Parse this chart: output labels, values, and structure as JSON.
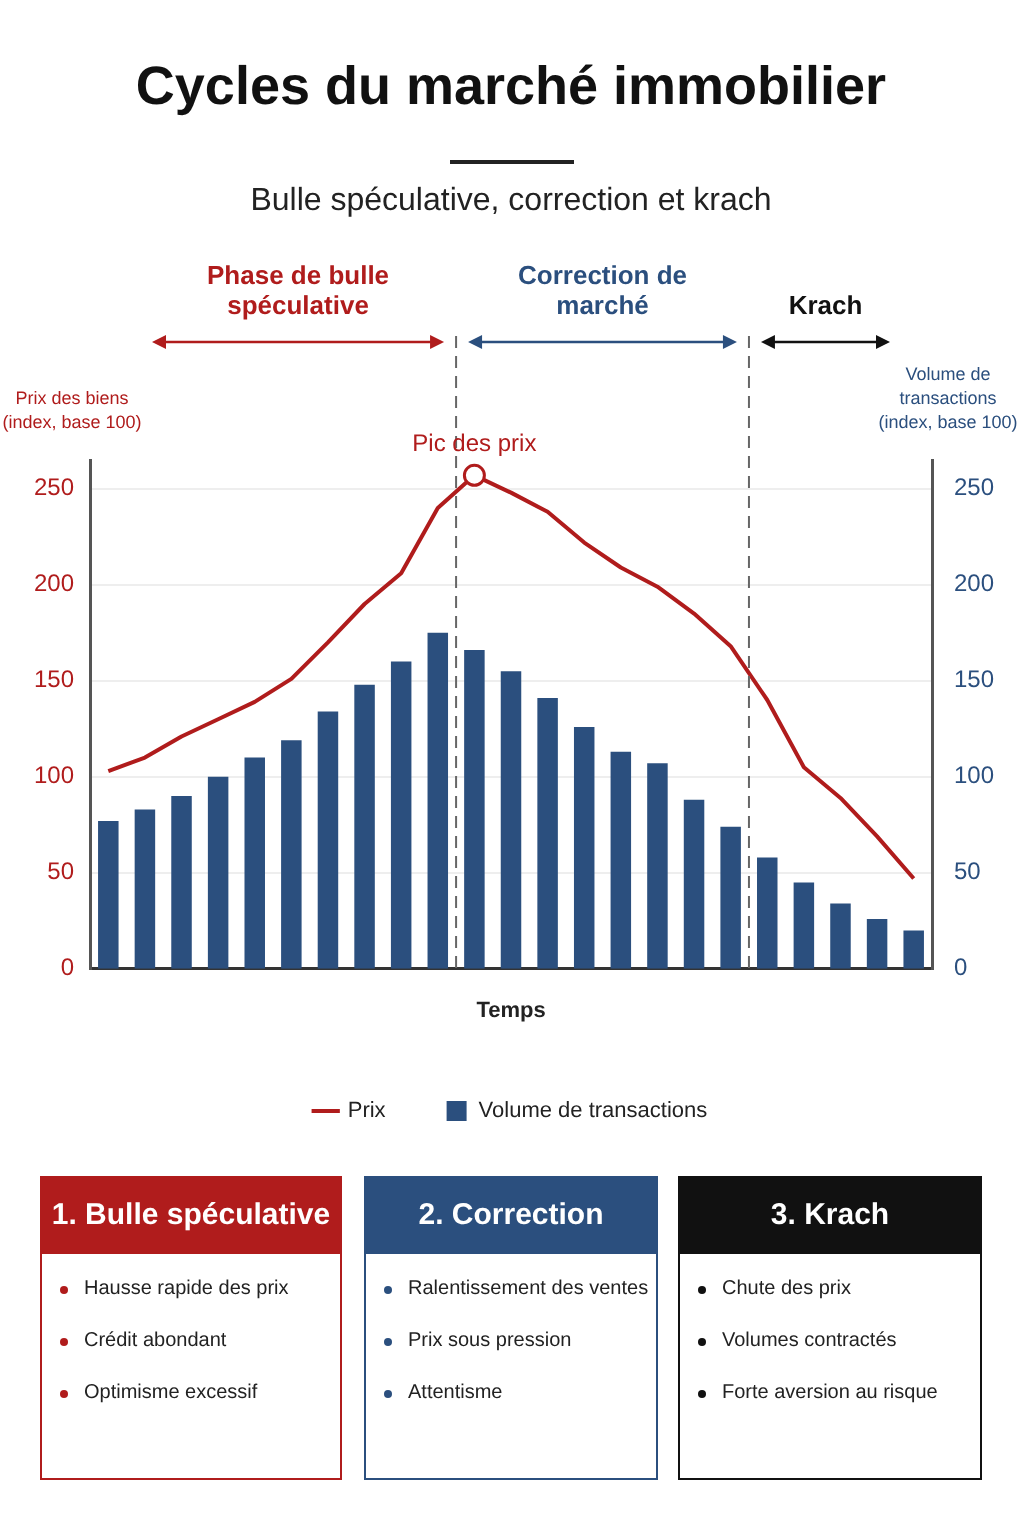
{
  "chart_data": [
    {
      "type": "bar",
      "title": "Cycles du marché immobilier",
      "subtitle": "Bulle spéculative, correction et krach",
      "xlabel": "Temps",
      "ylabel": "Prix des biens (index, base 100)",
      "y2label": "Volume de transactions (index, base 100)",
      "categories": [
        null,
        null,
        null,
        null,
        null,
        null,
        null,
        null,
        null,
        null,
        null,
        null,
        null,
        null,
        null,
        null,
        null,
        null,
        null,
        null,
        null,
        null,
        null
      ],
      "ylim": [
        0,
        265
      ],
      "yticks": [
        0,
        50,
        100,
        150,
        200,
        250
      ],
      "y2lim": [
        0,
        265
      ],
      "y2ticks": [
        0,
        50,
        100,
        150,
        200,
        250
      ],
      "series": [
        {
          "name": "Prix",
          "type": "line",
          "color": "#b01c1c",
          "values": [
            103,
            110,
            121,
            130,
            139,
            151,
            170,
            190,
            206,
            240,
            257,
            248,
            238,
            222,
            209,
            199,
            185,
            168,
            140,
            105,
            89,
            69,
            47
          ]
        },
        {
          "name": "Volume de transactions",
          "type": "bar",
          "axis": "y2",
          "color": "#2b4f7e",
          "values": [
            77,
            83,
            90,
            100,
            110,
            119,
            134,
            148,
            160,
            175,
            166,
            155,
            141,
            126,
            113,
            107,
            88,
            74,
            58,
            45,
            34,
            26,
            20
          ]
        }
      ],
      "annotations": [
        "Phase de bulle spéculative",
        "Correction de marché",
        "Krach",
        {
          "text": "Pic des prix",
          "y": 257
        }
      ],
      "grid": "y",
      "legend": "bottom",
      "marker": "none",
      "line_style": "solid"
    },
    {
      "type": "other",
      "title": "1. Bulle spéculative",
      "annotations": [
        "Hausse rapide des prix",
        "Crédit abondant",
        "Optimisme excessif"
      ]
    },
    {
      "type": "other",
      "title": "2. Correction",
      "annotations": [
        "Ralentissement des ventes",
        "Prix sous pression",
        "Attentisme"
      ]
    },
    {
      "type": "other",
      "title": "3. Krach",
      "annotations": [
        "Chute des prix",
        "Volumes contractés",
        "Forte aversion au risque"
      ]
    }
  ]
}
